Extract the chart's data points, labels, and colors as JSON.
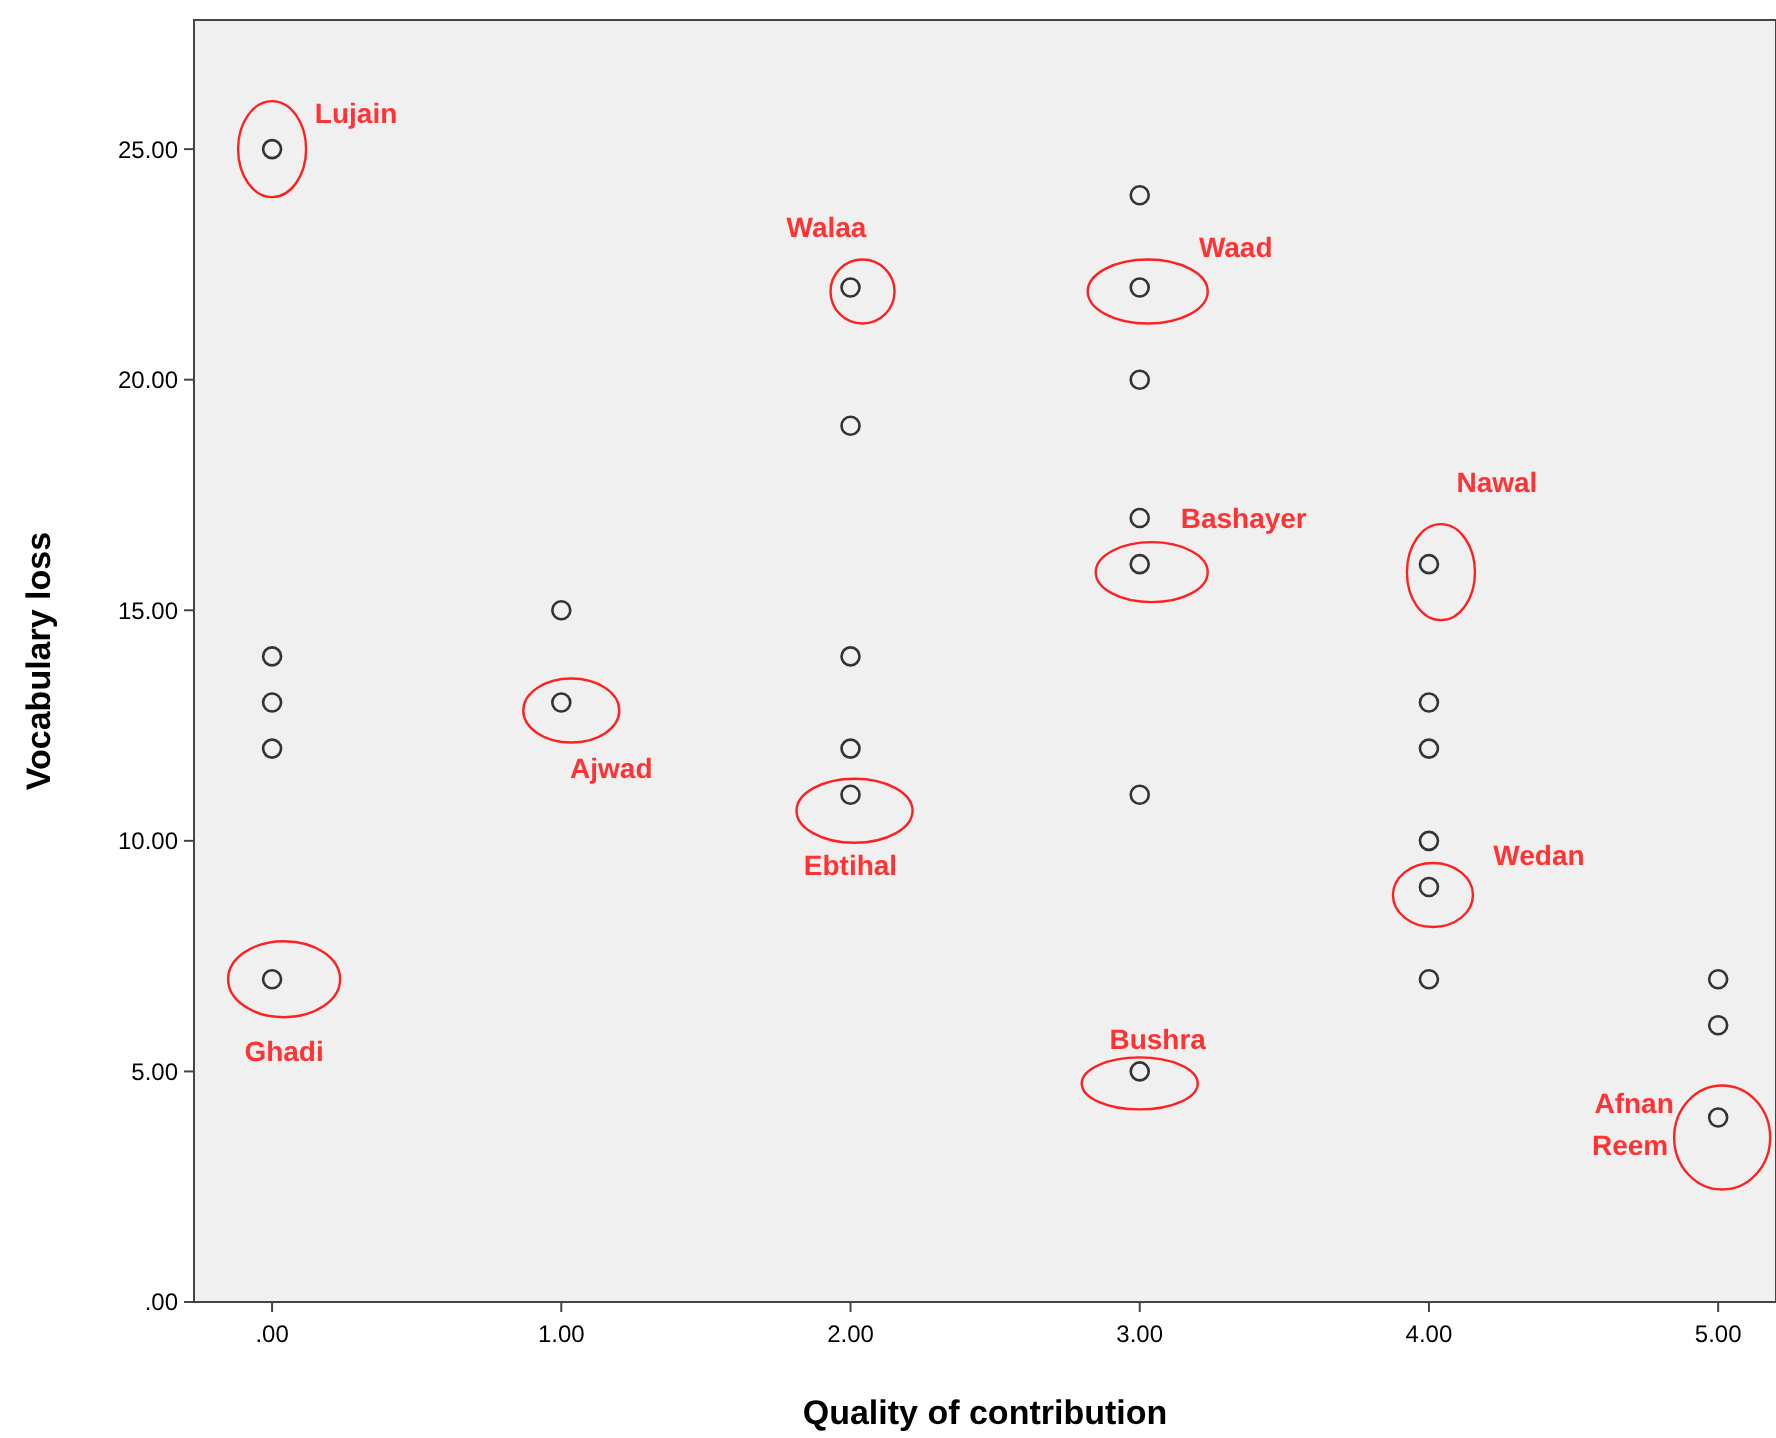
{
  "chart_data": {
    "type": "scatter",
    "xlabel": "Quality of contribution",
    "ylabel": "Vocabulary loss",
    "x": [
      0,
      0,
      0,
      0,
      0,
      1,
      1,
      2,
      2,
      2,
      2,
      2,
      3,
      3,
      3,
      3,
      3,
      3,
      3,
      4,
      4,
      4,
      4,
      4,
      4,
      5,
      5,
      5
    ],
    "values": [
      25,
      14,
      13,
      12,
      7,
      15,
      13,
      22,
      19,
      14,
      12,
      11,
      24,
      22,
      20,
      17,
      16,
      11,
      5,
      16,
      13,
      12,
      10,
      9,
      7,
      7,
      6,
      4
    ],
    "color": "#333333",
    "marker": "circle",
    "grid": false,
    "xlim": [
      -0.27,
      5.2
    ],
    "xticks": [
      {
        "value": 0,
        "label": ".00"
      },
      {
        "value": 1,
        "label": "1.00"
      },
      {
        "value": 2,
        "label": "2.00"
      },
      {
        "value": 3,
        "label": "3.00"
      },
      {
        "value": 4,
        "label": "4.00"
      },
      {
        "value": 5,
        "label": "5.00"
      }
    ],
    "ylim": [
      0,
      27.8
    ],
    "yticks": [
      {
        "value": 0,
        "label": ".00"
      },
      {
        "value": 5,
        "label": "5.00"
      },
      {
        "value": 10,
        "label": "10.00"
      },
      {
        "value": 15,
        "label": "15.00"
      },
      {
        "value": 20,
        "label": "20.00"
      },
      {
        "value": 25,
        "label": "25.00"
      }
    ],
    "annotations": [
      {
        "text": "Lujain",
        "x": 0,
        "y": 25
      },
      {
        "text": "Walaa",
        "x": 2,
        "y": 22
      },
      {
        "text": "Waad",
        "x": 3,
        "y": 22
      },
      {
        "text": "Bashayer",
        "x": 3,
        "y": 16
      },
      {
        "text": "Nawal",
        "x": 4,
        "y": 16
      },
      {
        "text": "Ajwad",
        "x": 1,
        "y": 13
      },
      {
        "text": "Ebtihal",
        "x": 2,
        "y": 11
      },
      {
        "text": "Ghadi",
        "x": 0,
        "y": 7
      },
      {
        "text": "Wedan",
        "x": 4,
        "y": 9
      },
      {
        "text": "Bushra",
        "x": 3,
        "y": 5
      },
      {
        "text": "Afnan",
        "x": 5,
        "y": 4
      },
      {
        "text": "Reem",
        "x": 5,
        "y": 4
      }
    ]
  }
}
